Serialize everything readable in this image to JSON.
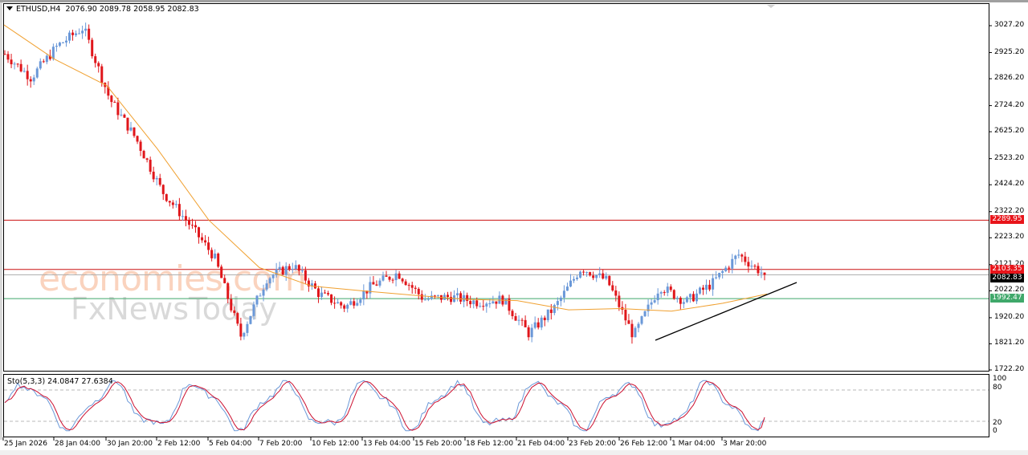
{
  "window": {
    "symbol_header": "ETHUSD,H4",
    "ohlc": "2076.90 2089.78 2058.95 2082.83"
  },
  "indicator": {
    "label": "Sto(5,3,3) 24.0847 27.6384",
    "levels": [
      "100",
      "80",
      "20",
      "0"
    ]
  },
  "watermark": {
    "line1": "economies.com",
    "line2": "FxNewsToday"
  },
  "price_axis": {
    "ticks": [
      "3027.20",
      "2925.20",
      "2826.20",
      "2724.20",
      "2625.20",
      "2523.20",
      "2424.20",
      "2322.20",
      "2223.20",
      "2121.20",
      "2022.20",
      "1920.20",
      "1821.20",
      "1722.20"
    ]
  },
  "price_tags": {
    "resistance_high": "2289.95",
    "resistance_low": "2103.35",
    "current": "2082.83",
    "support": "1992.47"
  },
  "colors": {
    "bull": "#6a98d8",
    "bear": "#e0161b",
    "ma": "#f0a030",
    "resistance": "#cc1010",
    "support": "#3fa86a",
    "current_line": "#b0b0b0",
    "sto_main": "#6a98d8",
    "sto_signal": "#cc1030"
  },
  "time_axis": {
    "ticks": [
      "25 Jan 2026",
      "28 Jan 04:00",
      "30 Jan 20:00",
      "2 Feb 12:00",
      "5 Feb 04:00",
      "7 Feb 20:00",
      "10 Feb 12:00",
      "13 Feb 04:00",
      "15 Feb 20:00",
      "18 Feb 12:00",
      "21 Feb 04:00",
      "23 Feb 20:00",
      "26 Feb 12:00",
      "1 Mar 04:00",
      "3 Mar 20:00"
    ]
  },
  "chart_data": {
    "type": "candlestick",
    "title": "ETHUSD,H4",
    "ohlc_last": {
      "open": 2076.9,
      "high": 2089.78,
      "low": 2058.95,
      "close": 2082.83
    },
    "ylim": [
      1722.2,
      3027.2
    ],
    "y_ticks": [
      3027.2,
      2925.2,
      2826.2,
      2724.2,
      2625.2,
      2523.2,
      2424.2,
      2322.2,
      2223.2,
      2121.2,
      2022.2,
      1920.2,
      1821.2,
      1722.2
    ],
    "x_ticks": [
      "25 Jan 2026",
      "28 Jan 04:00",
      "30 Jan 20:00",
      "2 Feb 12:00",
      "5 Feb 04:00",
      "7 Feb 20:00",
      "10 Feb 12:00",
      "13 Feb 04:00",
      "15 Feb 20:00",
      "18 Feb 12:00",
      "21 Feb 04:00",
      "23 Feb 20:00",
      "26 Feb 12:00",
      "1 Mar 04:00",
      "3 Mar 20:00"
    ],
    "horizontal_lines": [
      {
        "name": "resistance",
        "value": 2289.95,
        "color": "#cc1010"
      },
      {
        "name": "resistance",
        "value": 2103.35,
        "color": "#cc1010"
      },
      {
        "name": "current price",
        "value": 2082.83,
        "color": "#b0b0b0"
      },
      {
        "name": "support",
        "value": 1992.47,
        "color": "#3fa86a"
      }
    ],
    "trendline": {
      "from": {
        "time": "26 Feb ~20:00",
        "price": 1830
      },
      "to": {
        "time": "4 Mar ~12:00",
        "price": 2050
      },
      "type": "ascending support"
    },
    "moving_average": {
      "color": "#f0a030",
      "approx_values": [
        {
          "time": "25 Jan 2026",
          "value": 3030
        },
        {
          "time": "28 Jan 04:00",
          "value": 2900
        },
        {
          "time": "30 Jan 20:00",
          "value": 2800
        },
        {
          "time": "2 Feb 12:00",
          "value": 2560
        },
        {
          "time": "5 Feb 04:00",
          "value": 2290
        },
        {
          "time": "7 Feb 20:00",
          "value": 2110
        },
        {
          "time": "10 Feb 12:00",
          "value": 2040
        },
        {
          "time": "13 Feb 04:00",
          "value": 2022
        },
        {
          "time": "15 Feb 20:00",
          "value": 2005
        },
        {
          "time": "18 Feb 12:00",
          "value": 1990
        },
        {
          "time": "21 Feb 04:00",
          "value": 1985
        },
        {
          "time": "23 Feb 20:00",
          "value": 1950
        },
        {
          "time": "26 Feb 12:00",
          "value": 1955
        },
        {
          "time": "1 Mar 04:00",
          "value": 1945
        },
        {
          "time": "3 Mar 20:00",
          "value": 1975
        },
        {
          "time": "4 Mar 12:00",
          "value": 2010
        }
      ]
    },
    "price_path_approx": [
      {
        "time": "25 Jan 2026",
        "price": 2920
      },
      {
        "time": "26 Jan",
        "price": 2830
      },
      {
        "time": "27 Jan",
        "price": 2950
      },
      {
        "time": "28 Jan 04:00",
        "price": 3020
      },
      {
        "time": "29 Jan",
        "price": 2750
      },
      {
        "time": "30 Jan 20:00",
        "price": 2600
      },
      {
        "time": "31 Jan",
        "price": 2400
      },
      {
        "time": "2 Feb 12:00",
        "price": 2280
      },
      {
        "time": "4 Feb",
        "price": 2150
      },
      {
        "time": "5 Feb 04:00",
        "price": 1850
      },
      {
        "time": "6 Feb",
        "price": 2070
      },
      {
        "time": "7 Feb 20:00",
        "price": 2120
      },
      {
        "time": "9 Feb",
        "price": 2010
      },
      {
        "time": "10 Feb 12:00",
        "price": 1960
      },
      {
        "time": "12 Feb",
        "price": 2040
      },
      {
        "time": "13 Feb 04:00",
        "price": 2090
      },
      {
        "time": "14 Feb",
        "price": 1990
      },
      {
        "time": "15 Feb 20:00",
        "price": 2000
      },
      {
        "time": "18 Feb 12:00",
        "price": 1980
      },
      {
        "time": "21 Feb 04:00",
        "price": 1990
      },
      {
        "time": "22 Feb",
        "price": 1860
      },
      {
        "time": "23 Feb 20:00",
        "price": 1960
      },
      {
        "time": "24 Feb",
        "price": 2110
      },
      {
        "time": "25 Feb",
        "price": 2060
      },
      {
        "time": "26 Feb 12:00",
        "price": 1850
      },
      {
        "time": "27 Feb",
        "price": 2040
      },
      {
        "time": "1 Mar 04:00",
        "price": 1980
      },
      {
        "time": "2 Mar",
        "price": 2050
      },
      {
        "time": "3 Mar 20:00",
        "price": 2160
      },
      {
        "time": "4 Mar",
        "price": 2082.83
      }
    ],
    "subchart": {
      "type": "line",
      "title": "Sto(5,3,3)",
      "main_value": 24.0847,
      "signal_value": 27.6384,
      "ylim": [
        0,
        100
      ],
      "levels": [
        80,
        20
      ],
      "series": [
        {
          "name": "%K",
          "color": "#6a98d8"
        },
        {
          "name": "%D",
          "color": "#cc1030"
        }
      ]
    }
  }
}
